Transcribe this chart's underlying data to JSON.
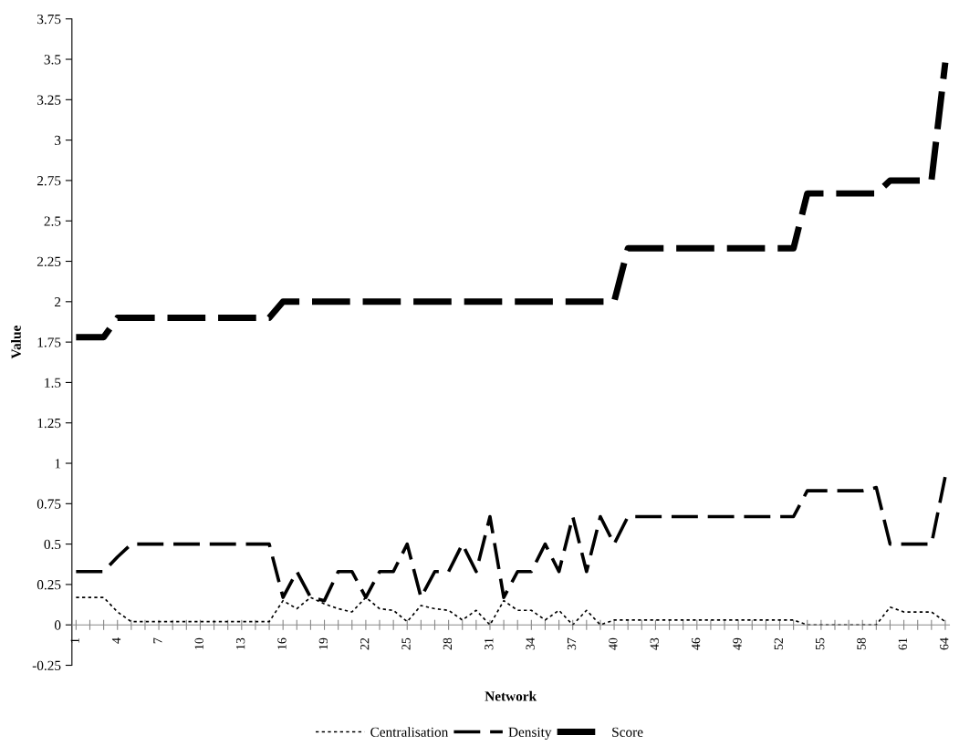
{
  "chart_data": {
    "type": "line",
    "xlabel": "Network",
    "ylabel": "Value",
    "categories": [
      "1",
      null,
      null,
      "4",
      null,
      null,
      "7",
      null,
      null,
      "10",
      null,
      null,
      "13",
      null,
      null,
      "16",
      null,
      null,
      "19",
      null,
      null,
      "22",
      null,
      null,
      "25",
      null,
      null,
      "28",
      null,
      null,
      "31",
      null,
      null,
      "34",
      null,
      null,
      "37",
      null,
      null,
      "40",
      null,
      null,
      "43",
      null,
      null,
      "46",
      null,
      null,
      "49",
      null,
      null,
      "52",
      null,
      null,
      "55",
      null,
      null,
      "58",
      null,
      null,
      "61",
      null,
      null,
      "64"
    ],
    "series": [
      {
        "name": "Centralisation",
        "color": "#000000",
        "line_style": "dotted",
        "values": [
          0.17,
          0.17,
          0.17,
          0.08,
          0.02,
          0.02,
          0.02,
          0.02,
          0.02,
          0.02,
          0.02,
          0.02,
          0.02,
          0.02,
          0.02,
          0.15,
          0.1,
          0.17,
          0.13,
          0.1,
          0.08,
          0.17,
          0.1,
          0.09,
          0.02,
          0.12,
          0.1,
          0.09,
          0.03,
          0.09,
          0.0,
          0.15,
          0.09,
          0.09,
          0.03,
          0.09,
          0.0,
          0.09,
          0.0,
          0.03,
          0.03,
          0.03,
          0.03,
          0.03,
          0.03,
          0.03,
          0.03,
          0.03,
          0.03,
          0.03,
          0.03,
          0.03,
          0.03,
          0.0,
          0.0,
          0.0,
          0.0,
          0.0,
          0.0,
          0.11,
          0.08,
          0.08,
          0.08,
          0.02
        ]
      },
      {
        "name": "Density",
        "color": "#000000",
        "line_style": "dashed",
        "values": [
          0.33,
          0.33,
          0.33,
          0.42,
          0.5,
          0.5,
          0.5,
          0.5,
          0.5,
          0.5,
          0.5,
          0.5,
          0.5,
          0.5,
          0.5,
          0.17,
          0.33,
          0.17,
          0.15,
          0.33,
          0.33,
          0.17,
          0.33,
          0.33,
          0.5,
          0.17,
          0.33,
          0.33,
          0.5,
          0.33,
          0.67,
          0.17,
          0.33,
          0.33,
          0.5,
          0.33,
          0.67,
          0.33,
          0.67,
          0.5,
          0.67,
          0.67,
          0.67,
          0.67,
          0.67,
          0.67,
          0.67,
          0.67,
          0.67,
          0.67,
          0.67,
          0.67,
          0.67,
          0.83,
          0.83,
          0.83,
          0.83,
          0.83,
          0.85,
          0.5,
          0.5,
          0.5,
          0.5,
          0.92
        ]
      },
      {
        "name": "Score",
        "color": "#000000",
        "line_style": "dashed",
        "values": [
          1.78,
          1.78,
          1.78,
          1.9,
          1.9,
          1.9,
          1.9,
          1.9,
          1.9,
          1.9,
          1.9,
          1.9,
          1.9,
          1.9,
          1.9,
          2.0,
          2.0,
          2.0,
          2.0,
          2.0,
          2.0,
          2.0,
          2.0,
          2.0,
          2.0,
          2.0,
          2.0,
          2.0,
          2.0,
          2.0,
          2.0,
          2.0,
          2.0,
          2.0,
          2.0,
          2.0,
          2.0,
          2.0,
          2.0,
          2.0,
          2.33,
          2.33,
          2.33,
          2.33,
          2.33,
          2.33,
          2.33,
          2.33,
          2.33,
          2.33,
          2.33,
          2.33,
          2.33,
          2.67,
          2.67,
          2.67,
          2.67,
          2.67,
          2.67,
          2.75,
          2.75,
          2.75,
          2.75,
          3.48
        ]
      }
    ],
    "ylim": [
      -0.25,
      3.75
    ],
    "yticks": [
      -0.25,
      0,
      0.25,
      0.5,
      0.75,
      1,
      1.25,
      1.5,
      1.75,
      2,
      2.25,
      2.5,
      2.75,
      3,
      3.25,
      3.5,
      3.75
    ],
    "legend": "bottom",
    "grid": false
  }
}
